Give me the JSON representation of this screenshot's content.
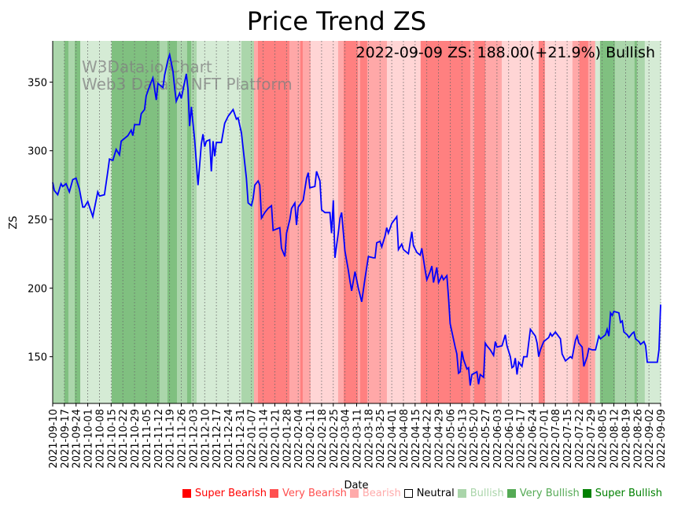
{
  "chart_data": {
    "type": "line",
    "title": "Price Trend ZS",
    "xlabel": "Date",
    "ylabel": "ZS",
    "ylim": [
      116,
      380
    ],
    "yticks": [
      150,
      200,
      250,
      300,
      350
    ],
    "x_start_date": "2021-09-10",
    "x_days_span": 364,
    "xticks": [
      "2021-09-10",
      "2021-09-17",
      "2021-09-24",
      "2021-10-01",
      "2021-10-08",
      "2021-10-15",
      "2021-10-22",
      "2021-10-29",
      "2021-11-05",
      "2021-11-12",
      "2021-11-19",
      "2021-11-26",
      "2021-12-03",
      "2021-12-10",
      "2021-12-17",
      "2021-12-24",
      "2021-12-31",
      "2022-01-07",
      "2022-01-14",
      "2022-01-21",
      "2022-01-28",
      "2022-02-04",
      "2022-02-11",
      "2022-02-18",
      "2022-02-25",
      "2022-03-04",
      "2022-03-11",
      "2022-03-18",
      "2022-03-25",
      "2022-04-01",
      "2022-04-08",
      "2022-04-15",
      "2022-04-22",
      "2022-04-29",
      "2022-05-06",
      "2022-05-13",
      "2022-05-20",
      "2022-05-27",
      "2022-06-03",
      "2022-06-10",
      "2022-06-17",
      "2022-06-24",
      "2022-07-01",
      "2022-07-08",
      "2022-07-15",
      "2022-07-22",
      "2022-07-29",
      "2022-08-05",
      "2022-08-12",
      "2022-08-19",
      "2022-08-26",
      "2022-09-02",
      "2022-09-09"
    ],
    "grid": "x-dotted",
    "series": [
      {
        "name": "ZS",
        "color": "#0000ff",
        "points_day_value": [
          [
            0,
            277
          ],
          [
            1,
            271
          ],
          [
            3,
            268
          ],
          [
            5,
            276
          ],
          [
            6,
            274
          ],
          [
            8,
            276
          ],
          [
            10,
            270
          ],
          [
            12,
            279
          ],
          [
            14,
            280
          ],
          [
            16,
            272
          ],
          [
            18,
            259
          ],
          [
            19,
            259
          ],
          [
            21,
            263
          ],
          [
            24,
            252
          ],
          [
            27,
            270
          ],
          [
            28,
            267
          ],
          [
            31,
            268
          ],
          [
            33,
            285
          ],
          [
            34,
            294
          ],
          [
            36,
            293
          ],
          [
            38,
            301
          ],
          [
            40,
            297
          ],
          [
            41,
            307
          ],
          [
            45,
            311
          ],
          [
            47,
            315
          ],
          [
            48,
            311
          ],
          [
            49,
            319
          ],
          [
            52,
            319
          ],
          [
            53,
            327
          ],
          [
            55,
            330
          ],
          [
            56,
            340
          ],
          [
            58,
            347
          ],
          [
            60,
            353
          ],
          [
            62,
            337
          ],
          [
            63,
            349
          ],
          [
            66,
            346
          ],
          [
            67,
            355
          ],
          [
            69,
            366
          ],
          [
            70,
            370
          ],
          [
            72,
            358
          ],
          [
            73,
            346
          ],
          [
            74,
            336
          ],
          [
            76,
            342
          ],
          [
            77,
            338
          ],
          [
            80,
            356
          ],
          [
            81,
            345
          ],
          [
            82,
            318
          ],
          [
            83,
            332
          ],
          [
            85,
            308
          ],
          [
            87,
            275
          ],
          [
            89,
            305
          ],
          [
            90,
            312
          ],
          [
            91,
            303
          ],
          [
            92,
            307
          ],
          [
            94,
            308
          ],
          [
            95,
            285
          ],
          [
            96,
            307
          ],
          [
            97,
            296
          ],
          [
            98,
            306
          ],
          [
            101,
            306
          ],
          [
            103,
            320
          ],
          [
            105,
            325
          ],
          [
            108,
            330
          ],
          [
            110,
            323
          ],
          [
            111,
            324
          ],
          [
            113,
            313
          ],
          [
            114,
            302
          ],
          [
            116,
            280
          ],
          [
            117,
            262
          ],
          [
            119,
            260
          ],
          [
            120,
            265
          ],
          [
            121,
            275
          ],
          [
            123,
            278
          ],
          [
            124,
            275
          ],
          [
            125,
            251
          ],
          [
            127,
            255
          ],
          [
            129,
            258
          ],
          [
            131,
            260
          ],
          [
            132,
            242
          ],
          [
            136,
            244
          ],
          [
            137,
            229
          ],
          [
            139,
            223
          ],
          [
            140,
            240
          ],
          [
            142,
            250
          ],
          [
            143,
            258
          ],
          [
            145,
            262
          ],
          [
            146,
            246
          ],
          [
            147,
            259
          ],
          [
            150,
            264
          ],
          [
            152,
            280
          ],
          [
            153,
            284
          ],
          [
            154,
            273
          ],
          [
            157,
            274
          ],
          [
            158,
            285
          ],
          [
            160,
            278
          ],
          [
            161,
            257
          ],
          [
            163,
            255
          ],
          [
            166,
            255
          ],
          [
            167,
            240
          ],
          [
            168,
            264
          ],
          [
            169,
            222
          ],
          [
            171,
            240
          ],
          [
            172,
            251
          ],
          [
            173,
            255
          ],
          [
            175,
            227
          ],
          [
            177,
            213
          ],
          [
            178,
            205
          ],
          [
            179,
            198
          ],
          [
            181,
            212
          ],
          [
            182,
            206
          ],
          [
            183,
            200
          ],
          [
            185,
            190
          ],
          [
            187,
            207
          ],
          [
            189,
            223
          ],
          [
            192,
            222
          ],
          [
            193,
            222
          ],
          [
            194,
            233
          ],
          [
            196,
            234
          ],
          [
            197,
            230
          ],
          [
            199,
            238
          ],
          [
            200,
            244
          ],
          [
            201,
            240
          ],
          [
            203,
            247
          ],
          [
            206,
            252
          ],
          [
            207,
            228
          ],
          [
            209,
            232
          ],
          [
            210,
            228
          ],
          [
            213,
            225
          ],
          [
            215,
            241
          ],
          [
            216,
            231
          ],
          [
            218,
            226
          ],
          [
            220,
            224
          ],
          [
            221,
            229
          ],
          [
            223,
            213
          ],
          [
            224,
            206
          ],
          [
            226,
            212
          ],
          [
            227,
            216
          ],
          [
            228,
            204
          ],
          [
            230,
            215
          ],
          [
            231,
            204
          ],
          [
            233,
            209
          ],
          [
            234,
            206
          ],
          [
            236,
            209
          ],
          [
            237,
            193
          ],
          [
            238,
            174
          ],
          [
            241,
            157
          ],
          [
            242,
            152
          ],
          [
            243,
            138
          ],
          [
            244,
            139
          ],
          [
            245,
            154
          ],
          [
            246,
            148
          ],
          [
            248,
            141
          ],
          [
            249,
            142
          ],
          [
            250,
            129
          ],
          [
            251,
            137
          ],
          [
            254,
            139
          ],
          [
            255,
            130
          ],
          [
            256,
            137
          ],
          [
            258,
            135
          ],
          [
            259,
            160
          ],
          [
            260,
            158
          ],
          [
            262,
            155
          ],
          [
            264,
            151
          ],
          [
            265,
            161
          ],
          [
            266,
            157
          ],
          [
            269,
            158
          ],
          [
            271,
            166
          ],
          [
            272,
            158
          ],
          [
            274,
            150
          ],
          [
            275,
            142
          ],
          [
            276,
            143
          ],
          [
            277,
            149
          ],
          [
            278,
            137
          ],
          [
            279,
            146
          ],
          [
            281,
            143
          ],
          [
            282,
            150
          ],
          [
            284,
            150
          ],
          [
            286,
            170
          ],
          [
            289,
            165
          ],
          [
            290,
            160
          ],
          [
            291,
            150
          ],
          [
            292,
            155
          ],
          [
            294,
            161
          ],
          [
            297,
            164
          ],
          [
            298,
            167
          ],
          [
            299,
            165
          ],
          [
            301,
            168
          ],
          [
            304,
            163
          ],
          [
            305,
            152
          ],
          [
            307,
            147
          ],
          [
            310,
            150
          ],
          [
            311,
            149
          ],
          [
            313,
            162
          ],
          [
            314,
            165
          ],
          [
            315,
            160
          ],
          [
            317,
            157
          ],
          [
            318,
            143
          ],
          [
            320,
            150
          ],
          [
            321,
            156
          ],
          [
            323,
            155
          ],
          [
            325,
            155
          ],
          [
            326,
            160
          ],
          [
            327,
            165
          ],
          [
            328,
            163
          ],
          [
            331,
            166
          ],
          [
            332,
            170
          ],
          [
            333,
            165
          ],
          [
            334,
            182
          ],
          [
            335,
            180
          ],
          [
            336,
            183
          ],
          [
            339,
            182
          ],
          [
            340,
            175
          ],
          [
            341,
            176
          ],
          [
            342,
            168
          ],
          [
            344,
            166
          ],
          [
            345,
            164
          ],
          [
            347,
            167
          ],
          [
            348,
            168
          ],
          [
            349,
            163
          ],
          [
            351,
            161
          ],
          [
            352,
            159
          ],
          [
            354,
            161
          ],
          [
            355,
            158
          ],
          [
            356,
            146
          ],
          [
            357,
            146
          ],
          [
            362,
            146
          ],
          [
            363,
            155
          ],
          [
            364,
            188
          ]
        ]
      }
    ],
    "sentiment_bands_day_level": [
      [
        0,
        7,
        2
      ],
      [
        7,
        9.4,
        3
      ],
      [
        9.4,
        13.2,
        2
      ],
      [
        13.2,
        16.5,
        3
      ],
      [
        16.5,
        35.3,
        1
      ],
      [
        35.3,
        64,
        3
      ],
      [
        64,
        68.7,
        2
      ],
      [
        68.7,
        74.4,
        3
      ],
      [
        74.4,
        80.5,
        2
      ],
      [
        80.5,
        82.9,
        3
      ],
      [
        82.9,
        86.2,
        2
      ],
      [
        86.2,
        113,
        1
      ],
      [
        113,
        120.5,
        2
      ],
      [
        120.5,
        122.9,
        -2
      ],
      [
        122.9,
        141.7,
        -3
      ],
      [
        141.7,
        148.3,
        -2
      ],
      [
        148.3,
        149.7,
        -3
      ],
      [
        149.7,
        154.4,
        -2
      ],
      [
        154.4,
        170.9,
        -1
      ],
      [
        170.9,
        174.2,
        -2
      ],
      [
        174.2,
        182.7,
        -3
      ],
      [
        182.7,
        184.1,
        -2
      ],
      [
        184.1,
        188.3,
        -3
      ],
      [
        188.3,
        200.1,
        -2
      ],
      [
        200.1,
        220.3,
        -1
      ],
      [
        220.3,
        250,
        -3
      ],
      [
        250,
        252.4,
        -2
      ],
      [
        252.4,
        259,
        -3
      ],
      [
        259,
        268.9,
        -2
      ],
      [
        268.9,
        291,
        -1
      ],
      [
        291,
        294.7,
        -3
      ],
      [
        294.7,
        311.2,
        -1
      ],
      [
        311.2,
        315.4,
        -2
      ],
      [
        315.4,
        320.6,
        -3
      ],
      [
        320.6,
        324.8,
        -2
      ],
      [
        324.8,
        327.7,
        1
      ],
      [
        327.7,
        336.6,
        3
      ],
      [
        336.6,
        348.4,
        2
      ],
      [
        348.4,
        349.8,
        3
      ],
      [
        349.8,
        354.5,
        2
      ],
      [
        354.5,
        364,
        1
      ]
    ],
    "band_colors": {
      "-3": "#ff8080",
      "-2": "#ffa8a8",
      "-1": "#ffd5d5",
      "1": "#d5ebd5",
      "2": "#abd6ab",
      "3": "#80c080"
    },
    "annotation": "2022-09-09 ZS: 188.00(+21.9%) Bullish",
    "watermark": [
      "W3Data.io Chart",
      "Web3 Data & NFT Platform"
    ],
    "legend": [
      {
        "label": "Super Bearish",
        "color": "#ff0000"
      },
      {
        "label": "Very Bearish",
        "color": "#ff5050"
      },
      {
        "label": "Bearish",
        "color": "#ffaaaa"
      },
      {
        "label": "Neutral",
        "color": "#000000",
        "hollow": true
      },
      {
        "label": "Bullish",
        "color": "#aad5aa"
      },
      {
        "label": "Very Bullish",
        "color": "#55aa55"
      },
      {
        "label": "Super Bullish",
        "color": "#008000"
      }
    ],
    "legend_placement": "bottom-right"
  }
}
